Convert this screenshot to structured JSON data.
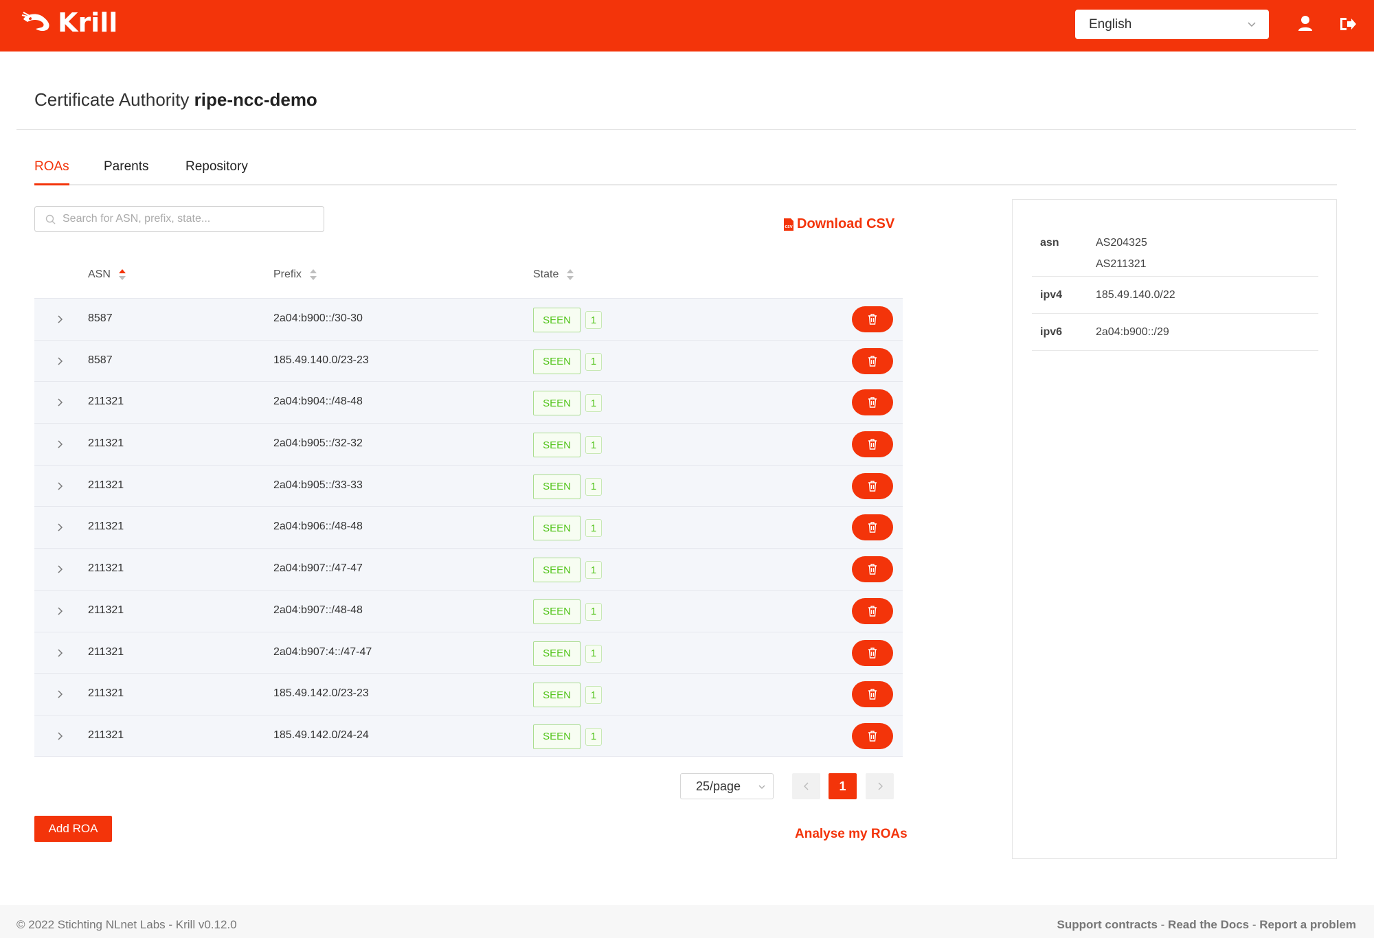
{
  "header": {
    "brand": "Krill",
    "language": "English",
    "brand_color": "#f3340a"
  },
  "page": {
    "title_prefix": "Certificate Authority",
    "ca_name": "ripe-ncc-demo"
  },
  "tabs": [
    {
      "label": "ROAs",
      "active": true
    },
    {
      "label": "Parents",
      "active": false
    },
    {
      "label": "Repository",
      "active": false
    }
  ],
  "search": {
    "placeholder": "Search for ASN, prefix, state..."
  },
  "download_csv_label": "Download CSV",
  "table": {
    "columns": [
      "ASN",
      "Prefix",
      "State"
    ],
    "rows": [
      {
        "asn": "8587",
        "prefix": "2a04:b900::/30-30",
        "state": "SEEN",
        "count": "1"
      },
      {
        "asn": "8587",
        "prefix": "185.49.140.0/23-23",
        "state": "SEEN",
        "count": "1"
      },
      {
        "asn": "211321",
        "prefix": "2a04:b904::/48-48",
        "state": "SEEN",
        "count": "1"
      },
      {
        "asn": "211321",
        "prefix": "2a04:b905::/32-32",
        "state": "SEEN",
        "count": "1"
      },
      {
        "asn": "211321",
        "prefix": "2a04:b905::/33-33",
        "state": "SEEN",
        "count": "1"
      },
      {
        "asn": "211321",
        "prefix": "2a04:b906::/48-48",
        "state": "SEEN",
        "count": "1"
      },
      {
        "asn": "211321",
        "prefix": "2a04:b907::/47-47",
        "state": "SEEN",
        "count": "1"
      },
      {
        "asn": "211321",
        "prefix": "2a04:b907::/48-48",
        "state": "SEEN",
        "count": "1"
      },
      {
        "asn": "211321",
        "prefix": "2a04:b907:4::/47-47",
        "state": "SEEN",
        "count": "1"
      },
      {
        "asn": "211321",
        "prefix": "185.49.142.0/23-23",
        "state": "SEEN",
        "count": "1"
      },
      {
        "asn": "211321",
        "prefix": "185.49.142.0/24-24",
        "state": "SEEN",
        "count": "1"
      }
    ]
  },
  "pagination": {
    "page_size": "25/page",
    "current_page": "1"
  },
  "add_roa_label": "Add ROA",
  "analyse_label": "Analyse my ROAs",
  "resources": {
    "asn_label": "asn",
    "asn_values": [
      "AS204325",
      "AS211321"
    ],
    "ipv4_label": "ipv4",
    "ipv4_value": "185.49.140.0/22",
    "ipv6_label": "ipv6",
    "ipv6_value": "2a04:b900::/29"
  },
  "footer": {
    "copyright": "© 2022 Stichting NLnet Labs - Krill v0.12.0",
    "links": [
      "Support contracts",
      "Read the Docs",
      "Report a problem"
    ],
    "separator": " - "
  }
}
